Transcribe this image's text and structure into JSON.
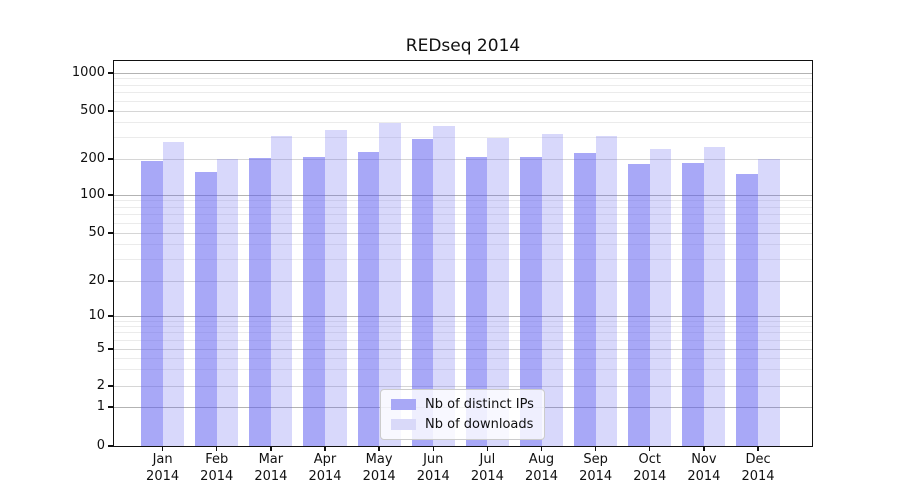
{
  "title": "REDseq 2014",
  "colors": {
    "distinct_ips_bar": "#a8a8f6",
    "downloads_bar": "#d9d9f9",
    "grid_minor": "#ebebeb",
    "grid_major": "#d6d6d6",
    "grid_power10": "#b3b3b3",
    "axis": "#111111",
    "legend_border": "#cccccc"
  },
  "legend": {
    "items": [
      {
        "label": "Nb of distinct IPs"
      },
      {
        "label": "Nb of downloads"
      }
    ]
  },
  "chart_data": {
    "type": "bar",
    "title": "REDseq 2014",
    "xlabel": "",
    "ylabel": "",
    "year": "2014",
    "months": [
      "Jan",
      "Feb",
      "Mar",
      "Apr",
      "May",
      "Jun",
      "Jul",
      "Aug",
      "Sep",
      "Oct",
      "Nov",
      "Dec"
    ],
    "categories": [
      "Jan 2014",
      "Feb 2014",
      "Mar 2014",
      "Apr 2014",
      "May 2014",
      "Jun 2014",
      "Jul 2014",
      "Aug 2014",
      "Sep 2014",
      "Oct 2014",
      "Nov 2014",
      "Dec 2014"
    ],
    "series": [
      {
        "name": "Nb of distinct IPs",
        "color": "#a8a8f6",
        "values": [
          193,
          156,
          203,
          209,
          230,
          292,
          206,
          209,
          225,
          183,
          185,
          150
        ]
      },
      {
        "name": "Nb of downloads",
        "color": "#d9d9f9",
        "values": [
          275,
          201,
          313,
          348,
          398,
          373,
          301,
          323,
          309,
          243,
          250,
          200
        ]
      }
    ],
    "y_scale": "log above 1, linear segment 0-1 (symlog-style)",
    "y_ticks": [
      0,
      1,
      2,
      5,
      10,
      20,
      50,
      100,
      200,
      500,
      1000
    ],
    "y_minor_gridlines": [
      3,
      4,
      6,
      7,
      8,
      9,
      30,
      40,
      60,
      70,
      80,
      90,
      300,
      400,
      600,
      700,
      800,
      900
    ],
    "ylim": [
      0,
      1250
    ],
    "grid": true,
    "legend_position": "lower center"
  }
}
